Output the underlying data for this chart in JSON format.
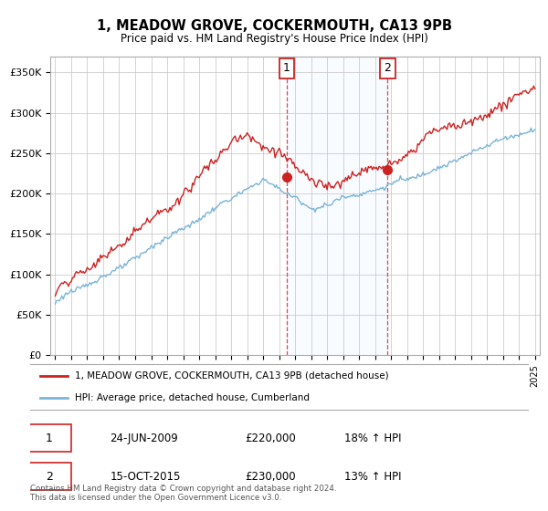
{
  "title": "1, MEADOW GROVE, COCKERMOUTH, CA13 9PB",
  "subtitle": "Price paid vs. HM Land Registry's House Price Index (HPI)",
  "ylabel_ticks": [
    "£0",
    "£50K",
    "£100K",
    "£150K",
    "£200K",
    "£250K",
    "£300K",
    "£350K"
  ],
  "ytick_values": [
    0,
    50000,
    100000,
    150000,
    200000,
    250000,
    300000,
    350000
  ],
  "ylim": [
    0,
    370000
  ],
  "xlim_start": 1994.7,
  "xlim_end": 2025.3,
  "hpi_color": "#7ab4d8",
  "price_color": "#cc2222",
  "sale1_x": 2009.48,
  "sale1_y": 220000,
  "sale1_label": "1",
  "sale2_x": 2015.79,
  "sale2_y": 230000,
  "sale2_label": "2",
  "legend_line1": "1, MEADOW GROVE, COCKERMOUTH, CA13 9PB (detached house)",
  "legend_line2": "HPI: Average price, detached house, Cumberland",
  "table_row1_num": "1",
  "table_row1_date": "24-JUN-2009",
  "table_row1_price": "£220,000",
  "table_row1_hpi": "18% ↑ HPI",
  "table_row2_num": "2",
  "table_row2_date": "15-OCT-2015",
  "table_row2_price": "£230,000",
  "table_row2_hpi": "13% ↑ HPI",
  "footer": "Contains HM Land Registry data © Crown copyright and database right 2024.\nThis data is licensed under the Open Government Licence v3.0.",
  "bg_color": "#ffffff",
  "plot_bg_color": "#ffffff",
  "grid_color": "#cccccc",
  "shade_color": "#ddeeff"
}
